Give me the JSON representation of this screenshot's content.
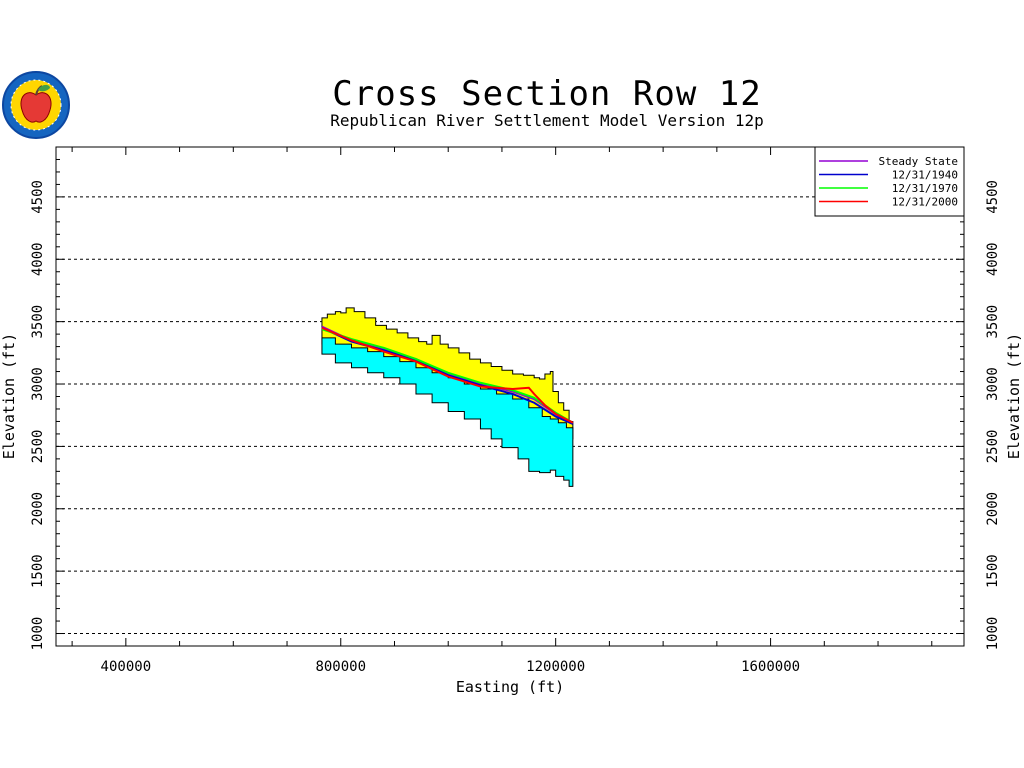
{
  "logo": {
    "icon": "apple-seal-icon",
    "colors": {
      "ring": "#1565c0",
      "inner": "#ffd600",
      "apple": "#e53935",
      "leaf": "#43a047"
    }
  },
  "chart_data": {
    "type": "area",
    "title": "Cross Section Row 12",
    "subtitle": "Republican River Settlement Model Version 12p",
    "xlabel": "Easting (ft)",
    "ylabel": "Elevation (ft)",
    "xlim": [
      270000,
      1960000
    ],
    "ylim": [
      900,
      4900
    ],
    "x_ticks": [
      400000,
      800000,
      1200000,
      1600000
    ],
    "x_tick_labels": [
      "400000",
      "800000",
      "1200000",
      "1600000"
    ],
    "y_ticks": [
      1000,
      1500,
      2000,
      2500,
      3000,
      3500,
      4000,
      4500
    ],
    "y_tick_labels": [
      "1000",
      "1500",
      "2000",
      "2500",
      "3000",
      "3500",
      "4000",
      "4500"
    ],
    "grid": "horizontal dashed",
    "legend_position": "top-right",
    "layers": [
      {
        "role": "land-surface-to-aquifer-top",
        "color": "#ffff00",
        "top": [
          [
            765000,
            3530
          ],
          [
            775000,
            3560
          ],
          [
            790000,
            3580
          ],
          [
            800000,
            3570
          ],
          [
            810000,
            3610
          ],
          [
            825000,
            3580
          ],
          [
            845000,
            3530
          ],
          [
            865000,
            3470
          ],
          [
            885000,
            3440
          ],
          [
            905000,
            3410
          ],
          [
            925000,
            3370
          ],
          [
            945000,
            3340
          ],
          [
            960000,
            3320
          ],
          [
            970000,
            3390
          ],
          [
            985000,
            3320
          ],
          [
            1000000,
            3290
          ],
          [
            1020000,
            3250
          ],
          [
            1040000,
            3200
          ],
          [
            1060000,
            3170
          ],
          [
            1080000,
            3140
          ],
          [
            1100000,
            3110
          ],
          [
            1120000,
            3080
          ],
          [
            1140000,
            3070
          ],
          [
            1160000,
            3050
          ],
          [
            1170000,
            3040
          ],
          [
            1180000,
            3080
          ],
          [
            1190000,
            3100
          ],
          [
            1195000,
            2940
          ],
          [
            1205000,
            2850
          ],
          [
            1215000,
            2790
          ],
          [
            1225000,
            2700
          ],
          [
            1232000,
            2630
          ]
        ],
        "bottom": [
          [
            765000,
            3370
          ],
          [
            790000,
            3320
          ],
          [
            820000,
            3290
          ],
          [
            850000,
            3260
          ],
          [
            880000,
            3220
          ],
          [
            910000,
            3180
          ],
          [
            940000,
            3130
          ],
          [
            970000,
            3090
          ],
          [
            1000000,
            3050
          ],
          [
            1030000,
            3000
          ],
          [
            1060000,
            2960
          ],
          [
            1090000,
            2920
          ],
          [
            1120000,
            2880
          ],
          [
            1150000,
            2810
          ],
          [
            1175000,
            2740
          ],
          [
            1190000,
            2720
          ],
          [
            1205000,
            2690
          ],
          [
            1220000,
            2650
          ],
          [
            1232000,
            2560
          ]
        ]
      },
      {
        "role": "aquifer-layer",
        "color": "#00ffff",
        "top": [
          [
            765000,
            3370
          ],
          [
            790000,
            3320
          ],
          [
            820000,
            3290
          ],
          [
            850000,
            3260
          ],
          [
            880000,
            3220
          ],
          [
            910000,
            3180
          ],
          [
            940000,
            3130
          ],
          [
            970000,
            3090
          ],
          [
            1000000,
            3050
          ],
          [
            1030000,
            3000
          ],
          [
            1060000,
            2960
          ],
          [
            1090000,
            2920
          ],
          [
            1120000,
            2880
          ],
          [
            1150000,
            2810
          ],
          [
            1175000,
            2740
          ],
          [
            1190000,
            2720
          ],
          [
            1205000,
            2690
          ],
          [
            1220000,
            2650
          ],
          [
            1232000,
            2560
          ]
        ],
        "bottom": [
          [
            765000,
            3330
          ],
          [
            790000,
            3240
          ],
          [
            820000,
            3170
          ],
          [
            850000,
            3130
          ],
          [
            880000,
            3090
          ],
          [
            910000,
            3050
          ],
          [
            940000,
            3000
          ],
          [
            970000,
            2920
          ],
          [
            1000000,
            2850
          ],
          [
            1030000,
            2780
          ],
          [
            1060000,
            2720
          ],
          [
            1080000,
            2640
          ],
          [
            1100000,
            2560
          ],
          [
            1130000,
            2490
          ],
          [
            1150000,
            2400
          ],
          [
            1170000,
            2300
          ],
          [
            1190000,
            2290
          ],
          [
            1200000,
            2310
          ],
          [
            1215000,
            2260
          ],
          [
            1225000,
            2230
          ],
          [
            1232000,
            2180
          ]
        ]
      }
    ],
    "series": [
      {
        "name": "Steady State",
        "color": "#9400d3",
        "x": [
          765000,
          820000,
          880000,
          940000,
          1000000,
          1060000,
          1120000,
          1160000,
          1200000,
          1232000
        ],
        "values": [
          3460,
          3350,
          3280,
          3200,
          3080,
          3000,
          2940,
          2880,
          2760,
          2690
        ]
      },
      {
        "name": "12/31/1940",
        "color": "#0000cd",
        "x": [
          765000,
          820000,
          880000,
          940000,
          1000000,
          1060000,
          1120000,
          1160000,
          1200000,
          1232000
        ],
        "values": [
          3450,
          3340,
          3270,
          3190,
          3070,
          2990,
          2920,
          2850,
          2740,
          2680
        ]
      },
      {
        "name": "12/31/1970",
        "color": "#00ff00",
        "x": [
          765000,
          820000,
          880000,
          940000,
          1000000,
          1060000,
          1120000,
          1160000,
          1200000,
          1232000
        ],
        "values": [
          3440,
          3360,
          3290,
          3200,
          3090,
          3010,
          2950,
          2890,
          2770,
          2690
        ]
      },
      {
        "name": "12/31/2000",
        "color": "#ff0000",
        "x": [
          765000,
          820000,
          880000,
          940000,
          1000000,
          1060000,
          1120000,
          1150000,
          1160000,
          1180000,
          1200000,
          1232000
        ],
        "values": [
          3450,
          3350,
          3260,
          3180,
          3060,
          2980,
          2960,
          2970,
          2920,
          2830,
          2760,
          2690
        ]
      }
    ]
  }
}
